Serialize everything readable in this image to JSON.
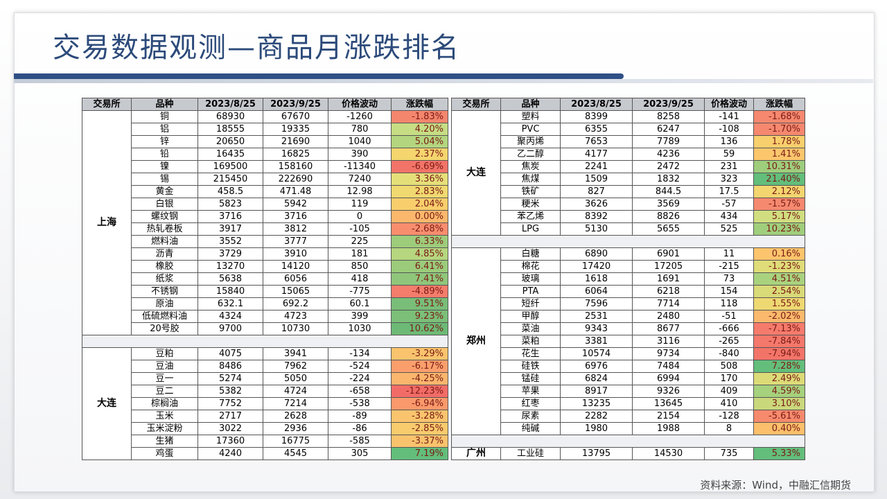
{
  "title": "交易数据观测—商品月涨跌排名",
  "headers": [
    "交易所",
    "品种",
    "2023/8/25",
    "2023/9/25",
    "价格波动",
    "涨跌幅"
  ],
  "left_groups": [
    {
      "exchange": "上海",
      "rows": [
        [
          "铜",
          "68930",
          "67670",
          "-1260",
          "-1.83%",
          "#f4866e"
        ],
        [
          "铝",
          "18555",
          "19335",
          "780",
          "4.20%",
          "#c6dd84"
        ],
        [
          "锌",
          "20650",
          "21690",
          "1040",
          "5.04%",
          "#b3d57f"
        ],
        [
          "铅",
          "16435",
          "16825",
          "390",
          "2.37%",
          "#f5d56e"
        ],
        [
          "镍",
          "169500",
          "158160",
          "-11340",
          "-6.69%",
          "#f27468"
        ],
        [
          "锡",
          "215450",
          "222690",
          "7240",
          "3.36%",
          "#e5df7a"
        ],
        [
          "黄金",
          "458.5",
          "471.48",
          "12.98",
          "2.83%",
          "#f0d970"
        ],
        [
          "白银",
          "5823",
          "5942",
          "119",
          "2.04%",
          "#f8ce6c"
        ],
        [
          "螺纹钢",
          "3716",
          "3716",
          "0",
          "0.00%",
          "#fbb86c"
        ],
        [
          "热轧卷板",
          "3917",
          "3812",
          "-105",
          "-2.68%",
          "#f88d6e"
        ],
        [
          "燃料油",
          "3552",
          "3777",
          "225",
          "6.33%",
          "#9dcc7b"
        ],
        [
          "沥青",
          "3729",
          "3910",
          "181",
          "4.85%",
          "#b6d67f"
        ],
        [
          "橡胶",
          "13270",
          "14120",
          "850",
          "6.41%",
          "#9bcb7b"
        ],
        [
          "纸浆",
          "5638",
          "6056",
          "418",
          "7.41%",
          "#8fc67b"
        ],
        [
          "不锈钢",
          "15840",
          "15065",
          "-775",
          "-4.89%",
          "#f57d6c"
        ],
        [
          "原油",
          "632.1",
          "692.2",
          "60.1",
          "9.51%",
          "#78bd78"
        ],
        [
          "低硫燃料油",
          "4324",
          "4723",
          "399",
          "9.23%",
          "#7bbf79"
        ],
        [
          "20号胶",
          "9700",
          "10730",
          "1030",
          "10.62%",
          "#6db976"
        ]
      ]
    },
    {
      "exchange": "大连",
      "rows": [
        [
          "豆粕",
          "4075",
          "3941",
          "-134",
          "-3.29%",
          "#f9c46d"
        ],
        [
          "豆油",
          "8486",
          "7962",
          "-524",
          "-6.17%",
          "#fa9f6c"
        ],
        [
          "豆一",
          "5274",
          "5050",
          "-224",
          "-4.25%",
          "#fab66d"
        ],
        [
          "豆二",
          "5382",
          "4724",
          "-658",
          "-12.23%",
          "#f26c67"
        ],
        [
          "棕榈油",
          "7752",
          "7214",
          "-538",
          "-6.94%",
          "#fa996b"
        ],
        [
          "玉米",
          "2717",
          "2628",
          "-89",
          "-3.28%",
          "#f9c46d"
        ],
        [
          "玉米淀粉",
          "3022",
          "2936",
          "-86",
          "-2.85%",
          "#f8cb6d"
        ],
        [
          "生猪",
          "17360",
          "16775",
          "-585",
          "-3.37%",
          "#f9c36d"
        ],
        [
          "鸡蛋",
          "4240",
          "4545",
          "305",
          "7.19%",
          "#63be7b"
        ]
      ]
    }
  ],
  "right_groups": [
    {
      "exchange": "大连",
      "rows": [
        [
          "塑料",
          "8399",
          "8258",
          "-141",
          "-1.68%",
          "#f5886f"
        ],
        [
          "PVC",
          "6355",
          "6247",
          "-108",
          "-1.70%",
          "#f5886f"
        ],
        [
          "聚丙烯",
          "7653",
          "7789",
          "136",
          "1.78%",
          "#f8cf6d"
        ],
        [
          "乙二醇",
          "4177",
          "4236",
          "59",
          "1.41%",
          "#fbc66c"
        ],
        [
          "焦炭",
          "2241",
          "2472",
          "231",
          "10.31%",
          "#9ecd7c"
        ],
        [
          "焦煤",
          "1509",
          "1832",
          "323",
          "21.40%",
          "#63be7b"
        ],
        [
          "铁矿",
          "827",
          "844.5",
          "17.5",
          "2.12%",
          "#f3d670"
        ],
        [
          "粳米",
          "3626",
          "3569",
          "-57",
          "-1.57%",
          "#f5896f"
        ],
        [
          "苯乙烯",
          "8392",
          "8826",
          "434",
          "5.17%",
          "#d1de80"
        ],
        [
          "LPG",
          "5130",
          "5655",
          "525",
          "10.23%",
          "#a0ce7c"
        ]
      ]
    },
    {
      "exchange": "郑州",
      "rows": [
        [
          "白糖",
          "6890",
          "6901",
          "11",
          "0.16%",
          "#fcc46c"
        ],
        [
          "棉花",
          "17420",
          "17205",
          "-215",
          "-1.23%",
          "#dfdc79"
        ],
        [
          "玻璃",
          "1618",
          "1691",
          "73",
          "4.51%",
          "#a9d27e"
        ],
        [
          "PTA",
          "6064",
          "6218",
          "154",
          "2.54%",
          "#d9da78"
        ],
        [
          "短纤",
          "7596",
          "7714",
          "118",
          "1.55%",
          "#eed872"
        ],
        [
          "甲醇",
          "2531",
          "2480",
          "-51",
          "-2.02%",
          "#fab96c"
        ],
        [
          "菜油",
          "9343",
          "8677",
          "-666",
          "-7.13%",
          "#f57b6c"
        ],
        [
          "菜粕",
          "3381",
          "3116",
          "-265",
          "-7.84%",
          "#f4786b"
        ],
        [
          "花生",
          "10574",
          "9734",
          "-840",
          "-7.94%",
          "#f27468"
        ],
        [
          "硅铁",
          "6976",
          "7484",
          "508",
          "7.28%",
          "#63be7b"
        ],
        [
          "锰硅",
          "6824",
          "6994",
          "170",
          "2.49%",
          "#dcdb78"
        ],
        [
          "苹果",
          "8917",
          "9326",
          "409",
          "4.59%",
          "#a6d17d"
        ],
        [
          "红枣",
          "13235",
          "13645",
          "410",
          "3.10%",
          "#cad87c"
        ],
        [
          "尿素",
          "2282",
          "2154",
          "-128",
          "-5.61%",
          "#f68a6d"
        ],
        [
          "纯碱",
          "1980",
          "1988",
          "8",
          "0.40%",
          "#fcbf6b"
        ]
      ]
    },
    {
      "exchange": "广州",
      "rows": [
        [
          "工业硅",
          "13795",
          "14530",
          "735",
          "5.33%",
          "#63be7b"
        ]
      ]
    }
  ],
  "footer": "资料来源：Wind，中融汇信期货"
}
